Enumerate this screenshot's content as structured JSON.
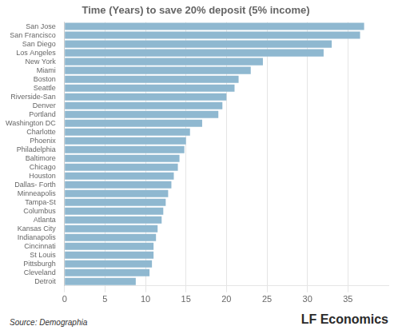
{
  "chart_data": {
    "type": "bar",
    "orientation": "horizontal",
    "title": "Time (Years) to save 20% deposit (5% income)",
    "categories": [
      "San Jose",
      "San Francisco",
      "San Diego",
      "Los Angeles",
      "New York",
      "Miami",
      "Boston",
      "Seattle",
      "Riverside-San",
      "Denver",
      "Portland",
      "Washington DC",
      "Charlotte",
      "Phoenix",
      "Philadelphia",
      "Baltimore",
      "Chicago",
      "Houston",
      "Dallas- Forth",
      "Minneapolis",
      "Tampa-St",
      "Columbus",
      "Atlanta",
      "Kansas City",
      "Indianapolis",
      "Cincinnati",
      "St Louis",
      "Pittsburgh",
      "Cleveland",
      "Detroit"
    ],
    "values": [
      37,
      36.5,
      33,
      32,
      24.5,
      23,
      21.5,
      21,
      20,
      19.5,
      19,
      17,
      15.5,
      15,
      14.8,
      14.2,
      14,
      13.5,
      13.2,
      12.8,
      12.5,
      12.2,
      12,
      11.5,
      11.3,
      11,
      11,
      10.8,
      10.5,
      8.8
    ],
    "color": "#8fb8d0",
    "xlim": [
      0,
      40
    ],
    "xticks": [
      0,
      5,
      10,
      15,
      20,
      25,
      30,
      35
    ],
    "grid": true,
    "annotations": [
      "Source: Demographia",
      "LF Economics"
    ]
  }
}
